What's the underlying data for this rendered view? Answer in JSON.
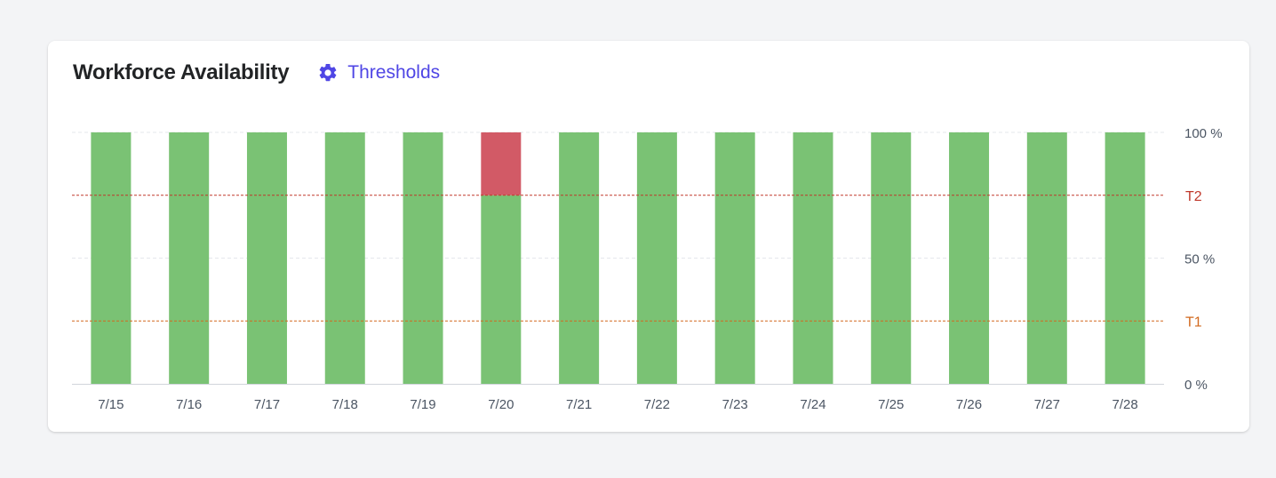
{
  "card": {
    "title": "Workforce Availability",
    "thresholds_label": "Thresholds",
    "thresholds_icon": "gear-icon"
  },
  "colors": {
    "accent": "#4f46e5",
    "available": "#7ac274",
    "shortfall": "#d25a66",
    "t2_line": "#c0392b",
    "t1_line": "#d2691e",
    "grid": "#e5e7eb"
  },
  "chart_data": {
    "type": "bar",
    "stacked": true,
    "categories": [
      "7/15",
      "7/16",
      "7/17",
      "7/18",
      "7/19",
      "7/20",
      "7/21",
      "7/22",
      "7/23",
      "7/24",
      "7/25",
      "7/26",
      "7/27",
      "7/28"
    ],
    "series": [
      {
        "color": "#7ac274",
        "values": [
          100,
          100,
          100,
          100,
          100,
          75,
          100,
          100,
          100,
          100,
          100,
          100,
          100,
          100
        ]
      },
      {
        "color": "#d25a66",
        "values": [
          0,
          0,
          0,
          0,
          0,
          25,
          0,
          0,
          0,
          0,
          0,
          0,
          0,
          0
        ]
      }
    ],
    "ylim": [
      0,
      100
    ],
    "y_axis_position": "right",
    "y_ticks": [
      {
        "value": 100,
        "label": "100 %"
      },
      {
        "value": 50,
        "label": "50 %"
      },
      {
        "value": 0,
        "label": "0 %"
      }
    ],
    "thresholds": [
      {
        "label": "T2",
        "value": 75,
        "color": "#c0392b"
      },
      {
        "label": "T1",
        "value": 25,
        "color": "#d2691e"
      }
    ],
    "grid": true
  }
}
